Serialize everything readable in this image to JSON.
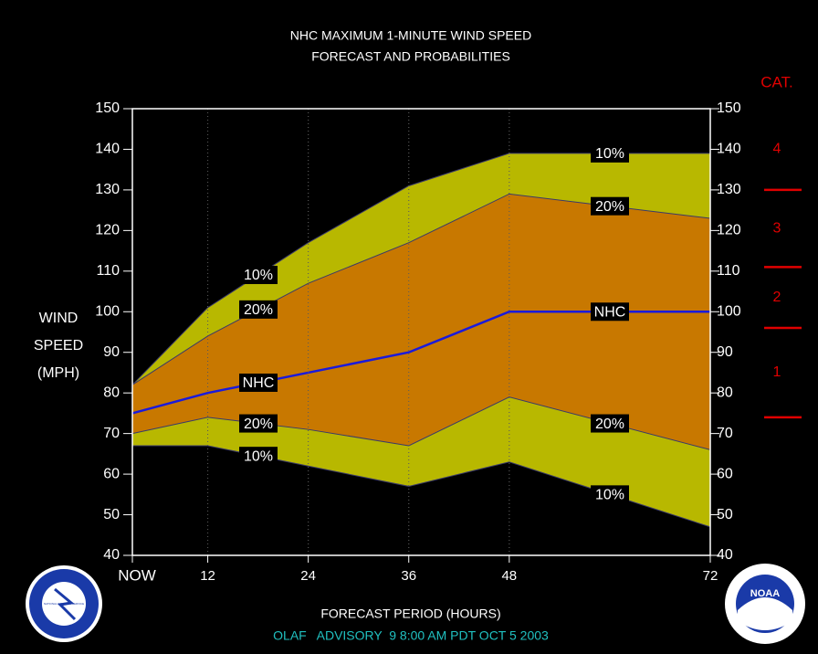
{
  "chart_data": {
    "type": "band",
    "title": "NHC MAXIMUM 1-MINUTE WIND SPEED",
    "subtitle": "FORECAST AND PROBABILITIES",
    "y_label": [
      "WIND",
      "SPEED",
      "(MPH)"
    ],
    "x_label": "FORECAST PERIOD (HOURS)",
    "footer": "OLAF   ADVISORY  9 8:00 AM PDT OCT 5 2003",
    "x": [
      3,
      12,
      24,
      36,
      48,
      72
    ],
    "xlim": [
      3,
      72
    ],
    "xticks": [
      {
        "value": 3,
        "label": "NOW"
      },
      12,
      24,
      36,
      48,
      72
    ],
    "ylim": [
      40,
      150
    ],
    "yticks": [
      40,
      50,
      60,
      70,
      80,
      90,
      100,
      110,
      120,
      130,
      140,
      150
    ],
    "grid": true,
    "series": [
      {
        "name": "10%",
        "color": "#b8b800",
        "values": [
          82,
          101,
          117,
          131,
          139,
          139
        ]
      },
      {
        "name": "20%",
        "color": "#c87800",
        "values": [
          82,
          94,
          107,
          117,
          129,
          123
        ]
      },
      {
        "name": "NHC",
        "color": "#1a1adc",
        "values": [
          75,
          80,
          85,
          90,
          100,
          100
        ]
      },
      {
        "name": "20%",
        "color": "#c87800",
        "values": [
          70,
          74,
          71,
          67,
          79,
          66
        ]
      },
      {
        "name": "10%",
        "color": "#b8b800",
        "values": [
          67,
          67,
          62,
          57,
          63,
          47
        ]
      }
    ],
    "category_title": "CAT.",
    "category_labels": [
      "1",
      "2",
      "3",
      "4"
    ],
    "category_thresholds": [
      74,
      96,
      111,
      130
    ],
    "category_color": "#e00000"
  },
  "logos": {
    "nws": "NATIONAL WEATHER SERVICE",
    "noaa": "NOAA"
  }
}
